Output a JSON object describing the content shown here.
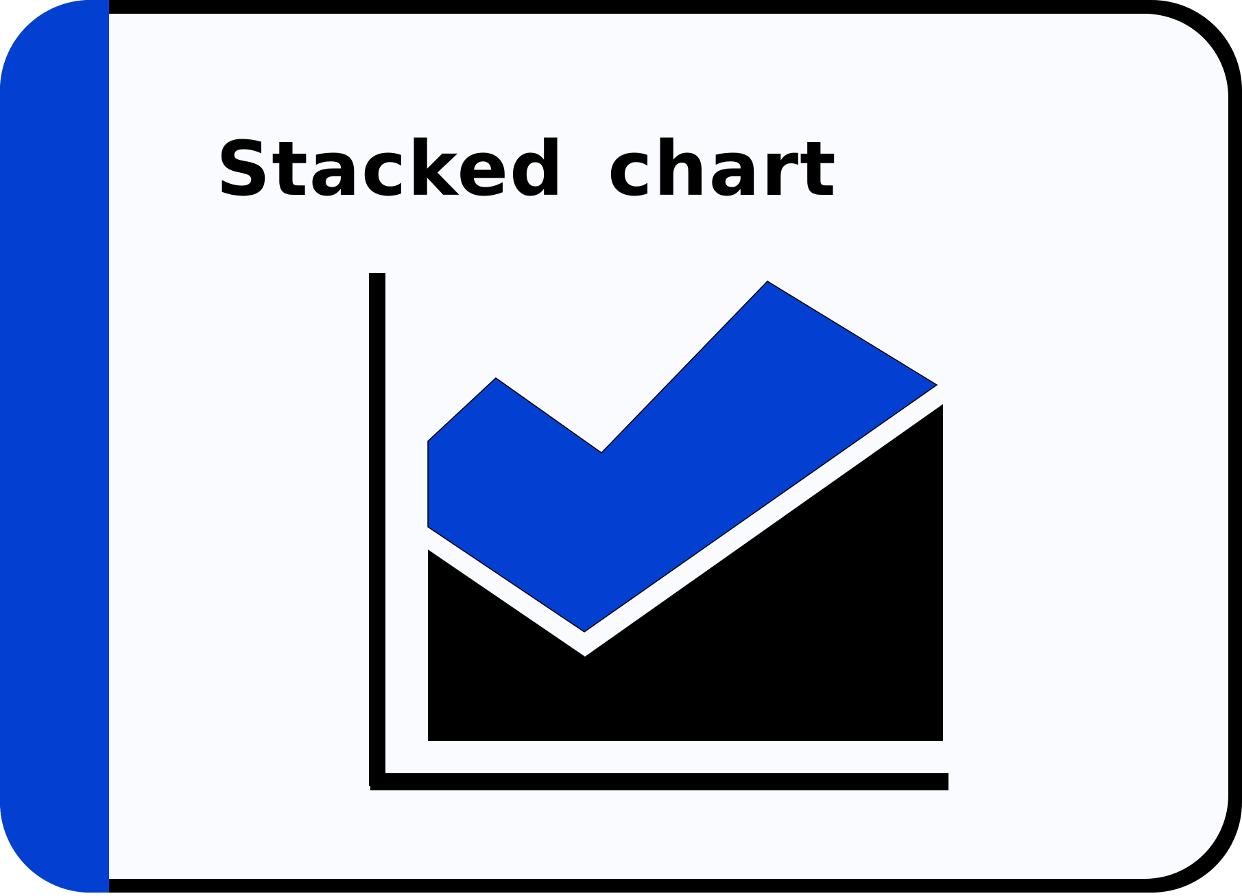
{
  "card": {
    "title": "Stacked chart",
    "icon": "stacked-area-chart-icon"
  },
  "colors": {
    "background": "#FAFBFE",
    "accent": "#0340D2",
    "ink": "#000000"
  }
}
